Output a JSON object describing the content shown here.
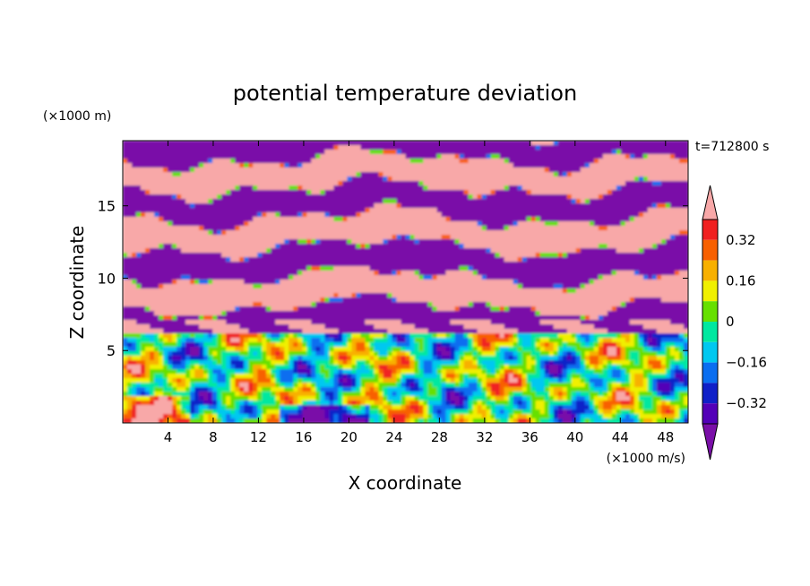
{
  "chart_data": {
    "type": "heatmap",
    "title": "potential temperature deviation",
    "xlabel": "X coordinate",
    "ylabel": "Z coordinate",
    "x_unit": "(×1000 m/s)",
    "y_unit": "(×1000 m)",
    "time_label": "t=712800 s",
    "xlim": [
      0,
      50
    ],
    "ylim": [
      0,
      19.5
    ],
    "x_ticks": [
      4,
      8,
      12,
      16,
      20,
      24,
      28,
      32,
      36,
      40,
      44,
      48
    ],
    "x_tick_labels": [
      "4",
      "8",
      "12",
      "16",
      "20",
      "24",
      "28",
      "32",
      "36",
      "40",
      "44",
      "48"
    ],
    "y_ticks": [
      5,
      10,
      15
    ],
    "y_tick_labels": [
      "5",
      "10",
      "15"
    ],
    "colorbar": {
      "levels": [
        -0.4,
        -0.32,
        -0.24,
        -0.16,
        -0.08,
        0,
        0.08,
        0.16,
        0.24,
        0.32,
        0.4
      ],
      "tick_values": [
        -0.32,
        -0.16,
        0,
        0.16,
        0.32
      ],
      "tick_labels": [
        "−0.32",
        "−0.16",
        "0",
        "0.16",
        "0.32"
      ],
      "colors": [
        "#7a0fa8",
        "#5300b8",
        "#1020c8",
        "#0a6ef0",
        "#00c8f0",
        "#00e8a0",
        "#66e000",
        "#f0f000",
        "#f8b000",
        "#f86000",
        "#f02020",
        "#f8a8a8"
      ],
      "extend": "both"
    }
  }
}
